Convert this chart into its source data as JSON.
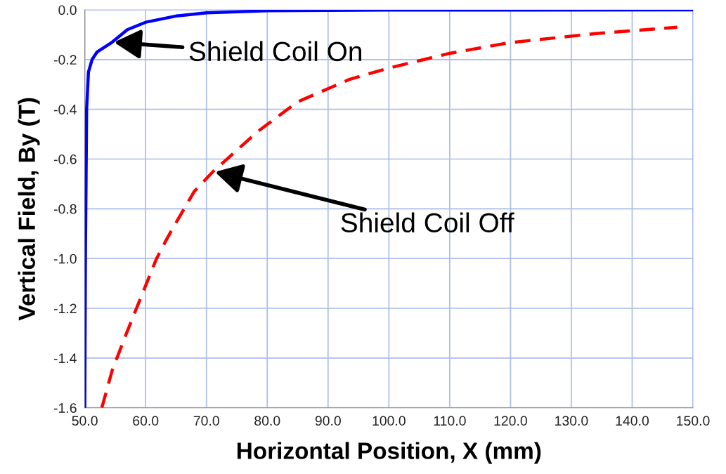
{
  "chart_data": {
    "type": "line",
    "xlabel": "Horizontal Position, X (mm)",
    "ylabel": "Vertical Field, By (T)",
    "xlim": [
      50,
      150
    ],
    "ylim": [
      -1.6,
      0
    ],
    "xticks": [
      {
        "value": 50,
        "label": "50.0"
      },
      {
        "value": 60,
        "label": "60.0"
      },
      {
        "value": 70,
        "label": "70.0"
      },
      {
        "value": 80,
        "label": "80.0"
      },
      {
        "value": 90,
        "label": "90.0"
      },
      {
        "value": 100,
        "label": "100.0"
      },
      {
        "value": 110,
        "label": "110.0"
      },
      {
        "value": 120,
        "label": "120.0"
      },
      {
        "value": 130,
        "label": "130.0"
      },
      {
        "value": 140,
        "label": "140.0"
      },
      {
        "value": 150,
        "label": "150.0"
      }
    ],
    "yticks": [
      {
        "value": 0,
        "label": "0.0"
      },
      {
        "value": -0.2,
        "label": "-0.2"
      },
      {
        "value": -0.4,
        "label": "-0.4"
      },
      {
        "value": -0.6,
        "label": "-0.6"
      },
      {
        "value": -0.8,
        "label": "-0.8"
      },
      {
        "value": -1.0,
        "label": "-1.0"
      },
      {
        "value": -1.2,
        "label": "-1.2"
      },
      {
        "value": -1.4,
        "label": "-1.4"
      },
      {
        "value": -1.6,
        "label": "-1.6"
      }
    ],
    "grid": true,
    "marker": "none",
    "series": [
      {
        "color": "#0000ff",
        "line_style": "solid",
        "x": [
          50.0,
          50.1,
          50.2,
          50.3,
          50.6,
          51.2,
          52,
          54.5,
          57,
          60,
          65,
          70,
          80,
          100,
          150
        ],
        "values": [
          -1.6,
          -1.0,
          -0.7,
          -0.4,
          -0.25,
          -0.2,
          -0.17,
          -0.13,
          -0.08,
          -0.05,
          -0.025,
          -0.012,
          -0.004,
          -0.001,
          0
        ]
      },
      {
        "color": "#ff0000",
        "line_style": "dashed",
        "x": [
          52.8,
          54.5,
          56.7,
          58.5,
          61.8,
          63.4,
          64.9,
          68,
          71.1,
          78.4,
          85,
          93.5,
          100,
          110,
          119.9,
          133.8,
          147.4
        ],
        "values": [
          -1.6,
          -1.45,
          -1.31,
          -1.2,
          -1.0,
          -0.925,
          -0.86,
          -0.73,
          -0.65,
          -0.49,
          -0.37,
          -0.28,
          -0.234,
          -0.175,
          -0.132,
          -0.096,
          -0.07
        ]
      }
    ],
    "annotations": [
      {
        "text": "Shield Coil On",
        "x": 54.5,
        "y": -0.13
      },
      {
        "text": "Shield Coil Off",
        "x": 71.1,
        "y": -0.65
      }
    ]
  }
}
